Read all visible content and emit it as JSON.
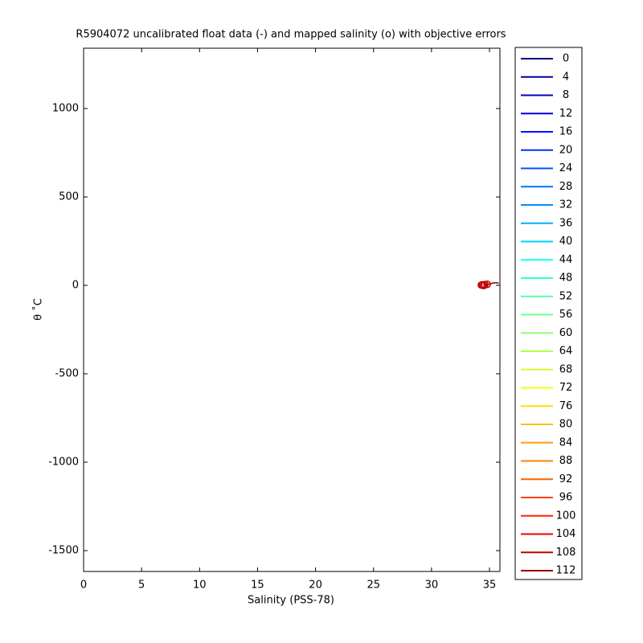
{
  "chart_data": {
    "type": "line",
    "title": "R5904072 uncalibrated float data (-) and mapped salinity (o) with objective errors",
    "x_label": "Salinity (PSS-78)",
    "y_label": "θ ˚C",
    "xlim": [
      0,
      35.9
    ],
    "ylim": [
      -1618,
      1341
    ],
    "xticks": [
      0,
      5,
      10,
      15,
      20,
      25,
      30,
      35
    ],
    "yticks": [
      -1500,
      -1000,
      -500,
      0,
      500,
      1000
    ],
    "float_line": {
      "color": "#900000",
      "x": [
        34.7,
        35.0,
        35.3,
        35.6,
        35.8
      ],
      "y": [
        4,
        8,
        13,
        15,
        12
      ]
    },
    "mapped_points": {
      "color": "#c00000",
      "x": [
        34.3,
        34.5,
        34.6,
        34.4,
        34.8
      ],
      "y": [
        2,
        -1,
        4,
        3,
        6
      ]
    },
    "legend": [
      {
        "label": "0",
        "color": "#000080"
      },
      {
        "label": "4",
        "color": "#0000a0"
      },
      {
        "label": "8",
        "color": "#0000c0"
      },
      {
        "label": "12",
        "color": "#0000e0"
      },
      {
        "label": "16",
        "color": "#0010ff"
      },
      {
        "label": "20",
        "color": "#0030ff"
      },
      {
        "label": "24",
        "color": "#0050ff"
      },
      {
        "label": "28",
        "color": "#0070ff"
      },
      {
        "label": "32",
        "color": "#0090ff"
      },
      {
        "label": "36",
        "color": "#00b0ff"
      },
      {
        "label": "40",
        "color": "#00d0ff"
      },
      {
        "label": "44",
        "color": "#10ffef"
      },
      {
        "label": "48",
        "color": "#30ffcf"
      },
      {
        "label": "52",
        "color": "#50ffaf"
      },
      {
        "label": "56",
        "color": "#70ff8f"
      },
      {
        "label": "60",
        "color": "#90ff6f"
      },
      {
        "label": "64",
        "color": "#b0ff4f"
      },
      {
        "label": "68",
        "color": "#d0ff2f"
      },
      {
        "label": "72",
        "color": "#f0ff0f"
      },
      {
        "label": "76",
        "color": "#ffe000"
      },
      {
        "label": "80",
        "color": "#ffc000"
      },
      {
        "label": "84",
        "color": "#ffa000"
      },
      {
        "label": "88",
        "color": "#ff8000"
      },
      {
        "label": "92",
        "color": "#ff6000"
      },
      {
        "label": "96",
        "color": "#ff4000"
      },
      {
        "label": "100",
        "color": "#ff2000"
      },
      {
        "label": "104",
        "color": "#f00000"
      },
      {
        "label": "108",
        "color": "#c00000"
      },
      {
        "label": "112",
        "color": "#900000"
      }
    ]
  }
}
